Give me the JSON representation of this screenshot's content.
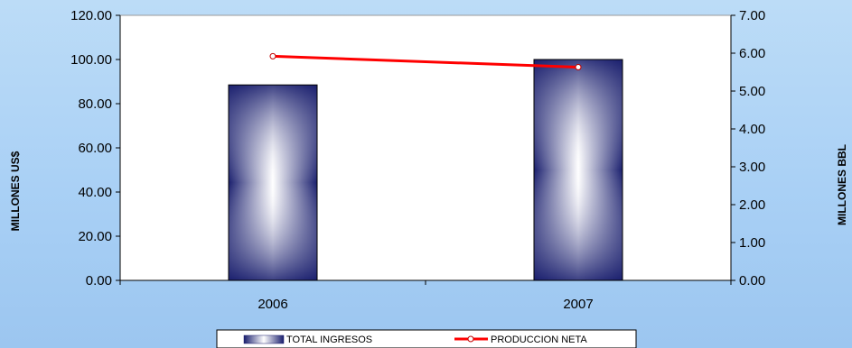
{
  "chart_data": {
    "type": "bar",
    "categories": [
      "2006",
      "2007"
    ],
    "series": [
      {
        "name": "TOTAL INGRESOS",
        "type": "bar",
        "axis": "left",
        "values": [
          88.5,
          100.0
        ]
      },
      {
        "name": "PRODUCCION NETA",
        "type": "line",
        "axis": "right",
        "values": [
          5.92,
          5.63
        ]
      }
    ],
    "title": "",
    "xlabel": "",
    "ylabel": "MILLONES US$",
    "y2label": "MILLONES BBL",
    "ylim": [
      0,
      120
    ],
    "y2lim": [
      0,
      7
    ],
    "yticks": [
      "0.00",
      "20.00",
      "40.00",
      "60.00",
      "80.00",
      "100.00",
      "120.00"
    ],
    "y2ticks": [
      "0.00",
      "1.00",
      "2.00",
      "3.00",
      "4.00",
      "5.00",
      "6.00",
      "7.00"
    ],
    "grid": false,
    "legend_position": "bottom",
    "colors": {
      "bar_dark": "#1a1f6e",
      "bar_light": "#ffffff",
      "line": "#ff0000",
      "plot_background": "#ffffff"
    }
  }
}
